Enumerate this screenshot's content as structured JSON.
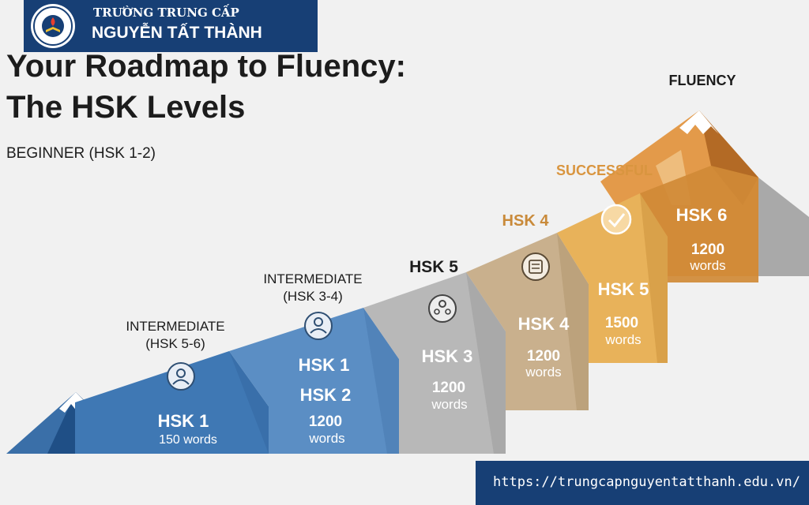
{
  "header": {
    "logo_text": "TRƯỜNG TRUNG CẤP NGUYỄN TẤT THÀNH",
    "school_line1": "TRƯỜNG TRUNG CẤP",
    "school_line2": "NGUYỄN TẤT THÀNH"
  },
  "title": "Your Roadmap to Fluency:\nThe HSK Levels",
  "subtitle": "BEGINNER (HSK 1-2)",
  "labels": {
    "intermediate_56": [
      "INTERMEDIATE",
      "(HSK 5-6)"
    ],
    "intermediate_34": [
      "INTERMEDIATE",
      "(HSK 3-4)"
    ],
    "hsk5": "HSK 5",
    "hsk4": "HSK 4",
    "successful": "SUCCESSFUL",
    "fluency": "FLUENCY"
  },
  "steps": [
    {
      "level": "HSK 1",
      "words": "150 words",
      "icon": "person-icon"
    },
    {
      "level": "HSK 1",
      "level2": "HSK 2",
      "words_num": "1200",
      "words_unit": "words",
      "icon": "teacher-icon"
    },
    {
      "level": "HSK 3",
      "words_num": "1200",
      "words_unit": "words",
      "icon": "group-icon"
    },
    {
      "level": "HSK 4",
      "words_num": "1200",
      "words_unit": "words",
      "icon": "document-icon"
    },
    {
      "level": "HSK 5",
      "words_num": "1500",
      "words_unit": "words",
      "icon": "checkmark-icon"
    },
    {
      "level": "HSK 6",
      "words_num": "1200",
      "words_unit": "words"
    }
  ],
  "footer": {
    "url": "https://trungcapnguyentatthanh.edu.vn/"
  },
  "colors": {
    "banner": "#173f75",
    "step1": "#3f78b4",
    "step2": "#5b8ec4",
    "step3": "#b4b4b4",
    "step4": "#c9b08d",
    "step5": "#e8b25a",
    "step6": "#d08a36"
  }
}
